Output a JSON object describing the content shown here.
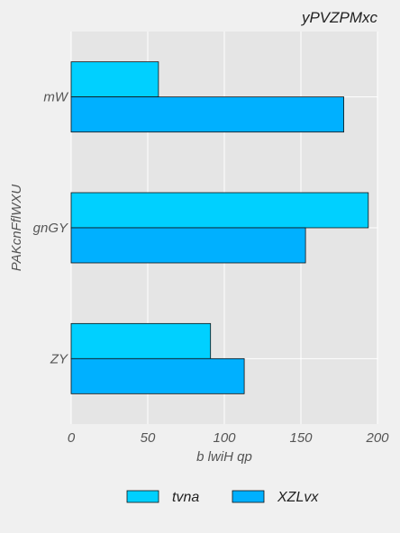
{
  "chart_data": {
    "type": "bar",
    "orientation": "horizontal",
    "title": "yPVZPMxc",
    "xlabel": "b lwiH qp",
    "ylabel": "PAKcnFflWXU",
    "categories": [
      "ZY",
      "gnGY",
      "mW"
    ],
    "series": [
      {
        "name": "tvna",
        "values": [
          91,
          194,
          57
        ],
        "color": "#00d0ff"
      },
      {
        "name": "XZLvx",
        "values": [
          113,
          153,
          178
        ],
        "color": "#00b0ff"
      }
    ],
    "xlim": [
      0,
      200
    ],
    "xticks": [
      "0",
      "50",
      "100",
      "150",
      "200"
    ],
    "grid": true,
    "legend_position": "bottom"
  }
}
